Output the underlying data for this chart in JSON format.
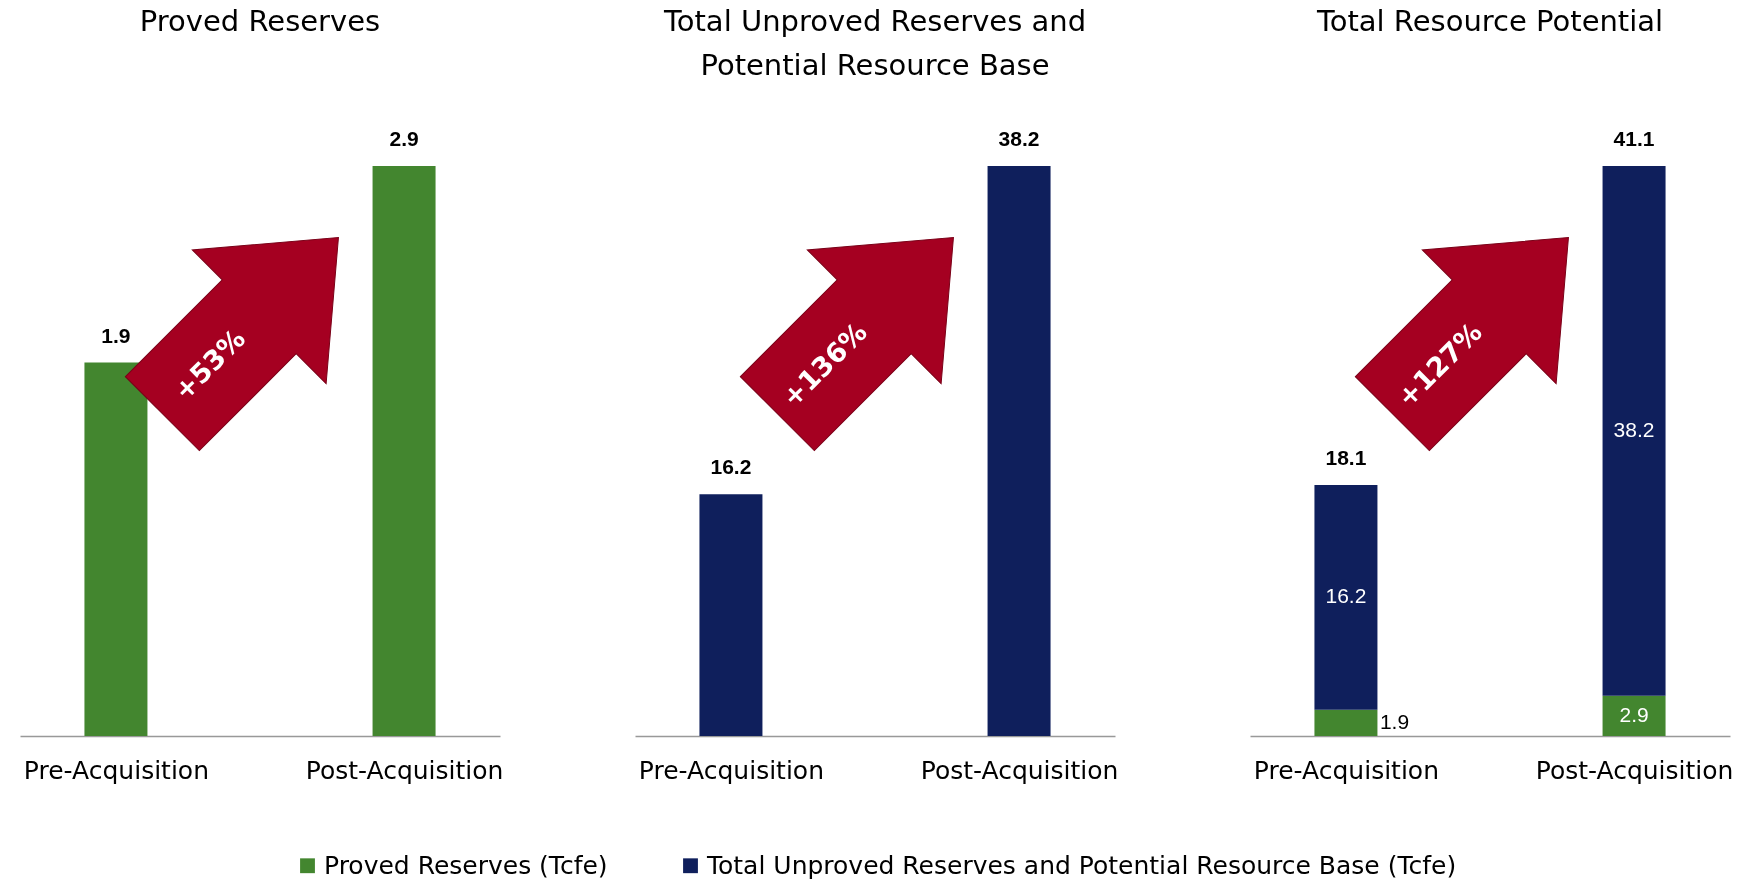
{
  "chart_data": [
    {
      "type": "bar",
      "title": "Proved Reserves",
      "categories": [
        "Pre-Acquisition",
        "Post-Acquisition"
      ],
      "values": [
        1.9,
        2.9
      ],
      "color": "#43862f",
      "tick_labels": "x",
      "data_labels": true,
      "annotations": [
        "+53%"
      ]
    },
    {
      "type": "bar",
      "title": "Total Unproved Reserves and Potential Resource Base",
      "categories": [
        "Pre-Acquisition",
        "Post-Acquisition"
      ],
      "values": [
        16.2,
        38.2
      ],
      "color": "#0f1f5c",
      "tick_labels": "x",
      "data_labels": true,
      "annotations": [
        "+136%"
      ]
    },
    {
      "type": "bar",
      "stacked": true,
      "title": "Total Resource Potential",
      "categories": [
        "Pre-Acquisition",
        "Post-Acquisition"
      ],
      "series": [
        {
          "name": "Proved Reserves (Tcfe)",
          "color": "#43862f",
          "values": [
            1.9,
            2.9
          ]
        },
        {
          "name": "Total Unproved Reserves and Potential Resource Base (Tcfe)",
          "color": "#0f1f5c",
          "values": [
            16.2,
            38.2
          ]
        }
      ],
      "tick_labels": "x",
      "data_labels": true,
      "totals": [
        "18.1",
        "41.1"
      ],
      "legend": "bottom",
      "annotations": [
        "+127%"
      ]
    }
  ]
}
